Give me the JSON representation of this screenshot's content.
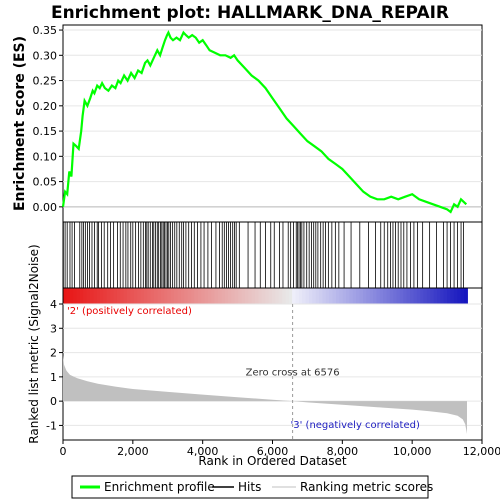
{
  "chart_data": {
    "type": "line",
    "title": "Enrichment plot: HALLMARK_DNA_REPAIR",
    "es_panel": {
      "ylabel": "Enrichment score (ES)",
      "ylim": [
        -0.03,
        0.36
      ],
      "yticks": [
        0.0,
        0.05,
        0.1,
        0.15,
        0.2,
        0.25,
        0.3,
        0.35
      ],
      "ytick_labels": [
        "0.00",
        "0.05",
        "0.10",
        "0.15",
        "0.20",
        "0.25",
        "0.30",
        "0.35"
      ],
      "series": [
        {
          "name": "Enrichment profile",
          "color": "#00ff00",
          "x": [
            0,
            60,
            120,
            180,
            240,
            300,
            380,
            450,
            520,
            560,
            620,
            700,
            780,
            850,
            900,
            980,
            1050,
            1120,
            1200,
            1300,
            1400,
            1500,
            1580,
            1650,
            1750,
            1850,
            1950,
            2050,
            2150,
            2250,
            2350,
            2420,
            2500,
            2600,
            2700,
            2780,
            2850,
            2920,
            2980,
            3020,
            3080,
            3150,
            3250,
            3350,
            3450,
            3520,
            3600,
            3700,
            3800,
            3900,
            4000,
            4100,
            4200,
            4350,
            4500,
            4650,
            4800,
            4900,
            5000,
            5200,
            5400,
            5600,
            5800,
            6000,
            6200,
            6400,
            6600,
            6800,
            7000,
            7200,
            7400,
            7600,
            7800,
            8000,
            8200,
            8400,
            8600,
            8800,
            9000,
            9200,
            9400,
            9600,
            9800,
            10000,
            10200,
            10400,
            10600,
            10800,
            11000,
            11100,
            11200,
            11300,
            11400,
            11550
          ],
          "y": [
            0.0,
            0.03,
            0.025,
            0.07,
            0.06,
            0.125,
            0.12,
            0.115,
            0.15,
            0.18,
            0.21,
            0.2,
            0.215,
            0.23,
            0.225,
            0.24,
            0.235,
            0.245,
            0.235,
            0.23,
            0.24,
            0.235,
            0.25,
            0.245,
            0.26,
            0.25,
            0.265,
            0.255,
            0.27,
            0.265,
            0.285,
            0.29,
            0.28,
            0.295,
            0.31,
            0.3,
            0.315,
            0.33,
            0.34,
            0.345,
            0.335,
            0.33,
            0.335,
            0.33,
            0.345,
            0.34,
            0.335,
            0.34,
            0.335,
            0.325,
            0.33,
            0.32,
            0.31,
            0.305,
            0.3,
            0.3,
            0.295,
            0.3,
            0.29,
            0.275,
            0.26,
            0.25,
            0.235,
            0.215,
            0.195,
            0.175,
            0.16,
            0.145,
            0.13,
            0.12,
            0.11,
            0.095,
            0.085,
            0.075,
            0.06,
            0.045,
            0.03,
            0.02,
            0.015,
            0.015,
            0.02,
            0.015,
            0.02,
            0.025,
            0.015,
            0.01,
            0.005,
            0.0,
            -0.005,
            -0.01,
            0.005,
            0.0,
            0.015,
            0.005
          ]
        }
      ]
    },
    "hits": [
      10,
      60,
      120,
      200,
      260,
      330,
      480,
      540,
      590,
      640,
      700,
      760,
      830,
      900,
      980,
      1020,
      1100,
      1180,
      1280,
      1360,
      1450,
      1560,
      1640,
      1720,
      1800,
      1860,
      1940,
      2000,
      2080,
      2160,
      2230,
      2300,
      2360,
      2400,
      2440,
      2500,
      2560,
      2600,
      2650,
      2700,
      2740,
      2790,
      2830,
      2870,
      2910,
      2950,
      2990,
      3030,
      3080,
      3140,
      3200,
      3260,
      3330,
      3400,
      3450,
      3520,
      3600,
      3680,
      3760,
      3850,
      3950,
      4040,
      4150,
      4250,
      4380,
      4480,
      4560,
      4620,
      4680,
      4740,
      4800,
      4860,
      4910,
      4960,
      5050,
      5300,
      5500,
      5650,
      5800,
      5950,
      6050,
      6200,
      6300,
      6450,
      6520,
      6600,
      6680,
      6720,
      6760,
      6800,
      6840,
      6900,
      6980,
      7050,
      7120,
      7180,
      7240,
      7300,
      7380,
      7450,
      7520,
      7600,
      7700,
      7800,
      7900,
      8050,
      8250,
      8500,
      8750,
      8950,
      9100,
      9200,
      9300,
      9380,
      9450,
      9520,
      9600,
      9680,
      9760,
      9850,
      9950,
      10050,
      10150,
      10300,
      10500,
      10700,
      10900,
      11000,
      11100,
      11200,
      11300,
      11400,
      11470
    ],
    "ranked_metric": {
      "ylabel": "Ranked list metric (Signal2Noise)",
      "ylim": [
        -1.6,
        4.0
      ],
      "yticks": [
        -1,
        0,
        1,
        2,
        3,
        4
      ],
      "ytick_labels": [
        "-1",
        "0",
        "1",
        "2",
        "3",
        "4"
      ],
      "x": [
        0,
        30,
        100,
        200,
        400,
        700,
        1000,
        1500,
        2000,
        3000,
        4000,
        5000,
        6000,
        6576,
        7000,
        8000,
        9000,
        10000,
        10500,
        11000,
        11300,
        11450,
        11520,
        11570
      ],
      "y": [
        1.9,
        1.5,
        1.25,
        1.08,
        0.95,
        0.82,
        0.72,
        0.6,
        0.5,
        0.38,
        0.27,
        0.16,
        0.06,
        0.0,
        -0.05,
        -0.15,
        -0.25,
        -0.35,
        -0.42,
        -0.5,
        -0.6,
        -0.75,
        -0.95,
        -1.35
      ],
      "color": "#c0c0c0",
      "zero_cross_label": "Zero cross at 6576",
      "zero_cross": 6576,
      "positive_label": "'2' (positively correlated)",
      "negative_label": "'3' (negatively correlated)",
      "positive_color": "#e80000",
      "negative_color": "#2020c0"
    },
    "xlabel": "Rank in Ordered Dataset",
    "xlim": [
      0,
      12000
    ],
    "xticks": [
      0,
      2000,
      4000,
      6000,
      8000,
      10000,
      12000
    ],
    "xtick_labels": [
      "0",
      "2,000",
      "4,000",
      "6,000",
      "8,000",
      "10,000",
      "12,000"
    ],
    "n_genes": 11580,
    "legend": {
      "placement": "bottom",
      "items": [
        {
          "label": "Enrichment profile",
          "color": "#00ff00"
        },
        {
          "label": "Hits",
          "color": "#000000"
        },
        {
          "label": "Ranking metric scores",
          "color": "#c0c0c0"
        }
      ]
    }
  }
}
